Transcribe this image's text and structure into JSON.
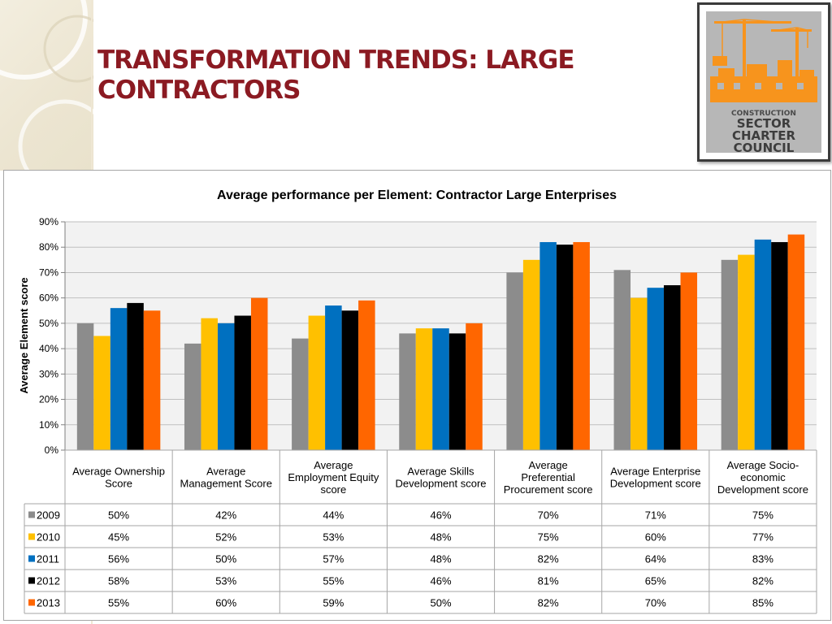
{
  "slide": {
    "title_line1": "TRANSFORMATION TRENDS: LARGE",
    "title_line2": "CONTRACTORS"
  },
  "logo": {
    "line1": "CONSTRUCTION",
    "line2": "SECTOR",
    "line3": "CHARTER",
    "line4": "COUNCIL",
    "color": "#f7941d"
  },
  "chart_data": {
    "type": "bar",
    "title": "Average performance per Element: Contractor Large Enterprises",
    "ylabel": "Average Element score",
    "xlabel": "",
    "ylim": [
      0,
      90
    ],
    "yticks": [
      "0%",
      "10%",
      "20%",
      "30%",
      "40%",
      "50%",
      "60%",
      "70%",
      "80%",
      "90%"
    ],
    "grid": true,
    "legend": "data-table",
    "categories": [
      [
        "Average Ownership",
        "Score"
      ],
      [
        "Average",
        "Management Score"
      ],
      [
        "Average",
        "Employment Equity",
        "score"
      ],
      [
        "Average Skills",
        "Development score"
      ],
      [
        "Average",
        "Preferential",
        "Procurement score"
      ],
      [
        "Average Enterprise",
        "Development score"
      ],
      [
        "Average Socio-",
        "economic",
        "Development score"
      ]
    ],
    "series": [
      {
        "name": "2009",
        "color": "#8c8c8c",
        "values": [
          50,
          42,
          44,
          46,
          70,
          71,
          75
        ],
        "labels": [
          "50%",
          "42%",
          "44%",
          "46%",
          "70%",
          "71%",
          "75%"
        ]
      },
      {
        "name": "2010",
        "color": "#ffc000",
        "values": [
          45,
          52,
          53,
          48,
          75,
          60,
          77
        ],
        "labels": [
          "45%",
          "52%",
          "53%",
          "48%",
          "75%",
          "60%",
          "77%"
        ]
      },
      {
        "name": "2011",
        "color": "#0070c0",
        "values": [
          56,
          50,
          57,
          48,
          82,
          64,
          83
        ],
        "labels": [
          "56%",
          "50%",
          "57%",
          "48%",
          "82%",
          "64%",
          "83%"
        ]
      },
      {
        "name": "2012",
        "color": "#000000",
        "values": [
          58,
          53,
          55,
          46,
          81,
          65,
          82
        ],
        "labels": [
          "58%",
          "53%",
          "55%",
          "46%",
          "81%",
          "65%",
          "82%"
        ]
      },
      {
        "name": "2013",
        "color": "#ff6600",
        "values": [
          55,
          60,
          59,
          50,
          82,
          70,
          85
        ],
        "labels": [
          "55%",
          "60%",
          "59%",
          "50%",
          "82%",
          "70%",
          "85%"
        ]
      }
    ]
  }
}
